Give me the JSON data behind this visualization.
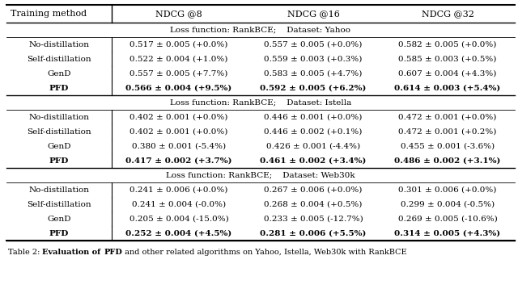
{
  "col_headers": [
    "Training method",
    "NDCG @8",
    "NDCG @16",
    "NDCG @32"
  ],
  "sections": [
    {
      "section_header": "Loss function: RankBCE;    Dataset: Yahoo",
      "rows": [
        [
          "No-distillation",
          "0.517 ± 0.005 (+0.0%)",
          "0.557 ± 0.005 (+0.0%)",
          "0.582 ± 0.005 (+0.0%)"
        ],
        [
          "Self-distillation",
          "0.522 ± 0.004 (+1.0%)",
          "0.559 ± 0.003 (+0.3%)",
          "0.585 ± 0.003 (+0.5%)"
        ],
        [
          "GenD",
          "0.557 ± 0.005 (+7.7%)",
          "0.583 ± 0.005 (+4.7%)",
          "0.607 ± 0.004 (+4.3%)"
        ],
        [
          "PFD",
          "0.566 ± 0.004 (+9.5%)",
          "0.592 ± 0.005 (+6.2%)",
          "0.614 ± 0.003 (+5.4%)"
        ]
      ],
      "bold_row": 3
    },
    {
      "section_header": "Loss function: RankBCE;    Dataset: Istella",
      "rows": [
        [
          "No-distillation",
          "0.402 ± 0.001 (+0.0%)",
          "0.446 ± 0.001 (+0.0%)",
          "0.472 ± 0.001 (+0.0%)"
        ],
        [
          "Self-distillation",
          "0.402 ± 0.001 (+0.0%)",
          "0.446 ± 0.002 (+0.1%)",
          "0.472 ± 0.001 (+0.2%)"
        ],
        [
          "GenD",
          "0.380 ± 0.001 (-5.4%)",
          "0.426 ± 0.001 (-4.4%)",
          "0.455 ± 0.001 (-3.6%)"
        ],
        [
          "PFD",
          "0.417 ± 0.002 (+3.7%)",
          "0.461 ± 0.002 (+3.4%)",
          "0.486 ± 0.002 (+3.1%)"
        ]
      ],
      "bold_row": 3
    },
    {
      "section_header": "Loss function: RankBCE;    Dataset: Web30k",
      "rows": [
        [
          "No-distillation",
          "0.241 ± 0.006 (+0.0%)",
          "0.267 ± 0.006 (+0.0%)",
          "0.301 ± 0.006 (+0.0%)"
        ],
        [
          "Self-distillation",
          "0.241 ± 0.004 (-0.0%)",
          "0.268 ± 0.004 (+0.5%)",
          "0.299 ± 0.004 (-0.5%)"
        ],
        [
          "GenD",
          "0.205 ± 0.004 (-15.0%)",
          "0.233 ± 0.005 (-12.7%)",
          "0.269 ± 0.005 (-10.6%)"
        ],
        [
          "PFD",
          "0.252 ± 0.004 (+4.5%)",
          "0.281 ± 0.006 (+5.5%)",
          "0.314 ± 0.005 (+4.3%)"
        ]
      ],
      "bold_row": 3
    }
  ],
  "caption_plain": "Table 2: Evaluation of ",
  "caption_bold": "PFD",
  "caption_rest": " and other related algorithms on Yahoo, Istella, Web30k with RankBCE",
  "bg_color": "#ffffff",
  "text_color": "#000000",
  "figsize": [
    6.4,
    3.58
  ],
  "dpi": 100
}
